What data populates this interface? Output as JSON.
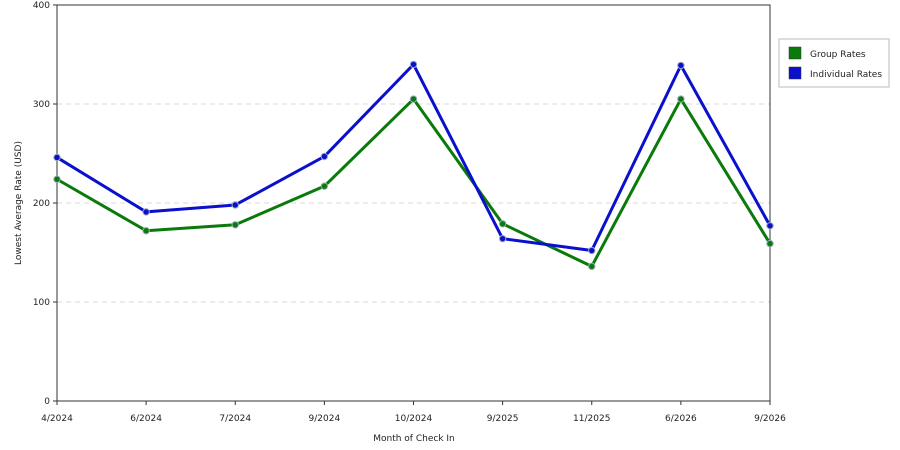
{
  "chart_data": {
    "type": "line",
    "xlabel": "Month of Check In",
    "ylabel": "Lowest Average Rate (USD)",
    "categories": [
      "4/2024",
      "6/2024",
      "7/2024",
      "9/2024",
      "10/2024",
      "9/2025",
      "11/2025",
      "6/2026",
      "9/2026"
    ],
    "ylim": [
      0,
      400
    ],
    "yticks": [
      0,
      100,
      200,
      300,
      400
    ],
    "grid": "horizontal dashed",
    "legend_position": "right",
    "series": [
      {
        "name": "Group Rates",
        "color": "#0a7a0a",
        "values": [
          224,
          172,
          178,
          217,
          305,
          179,
          136,
          305,
          159
        ]
      },
      {
        "name": "Individual Rates",
        "color": "#0a10cc",
        "values": [
          246,
          191,
          198,
          247,
          340,
          164,
          152,
          339,
          177
        ]
      }
    ]
  }
}
